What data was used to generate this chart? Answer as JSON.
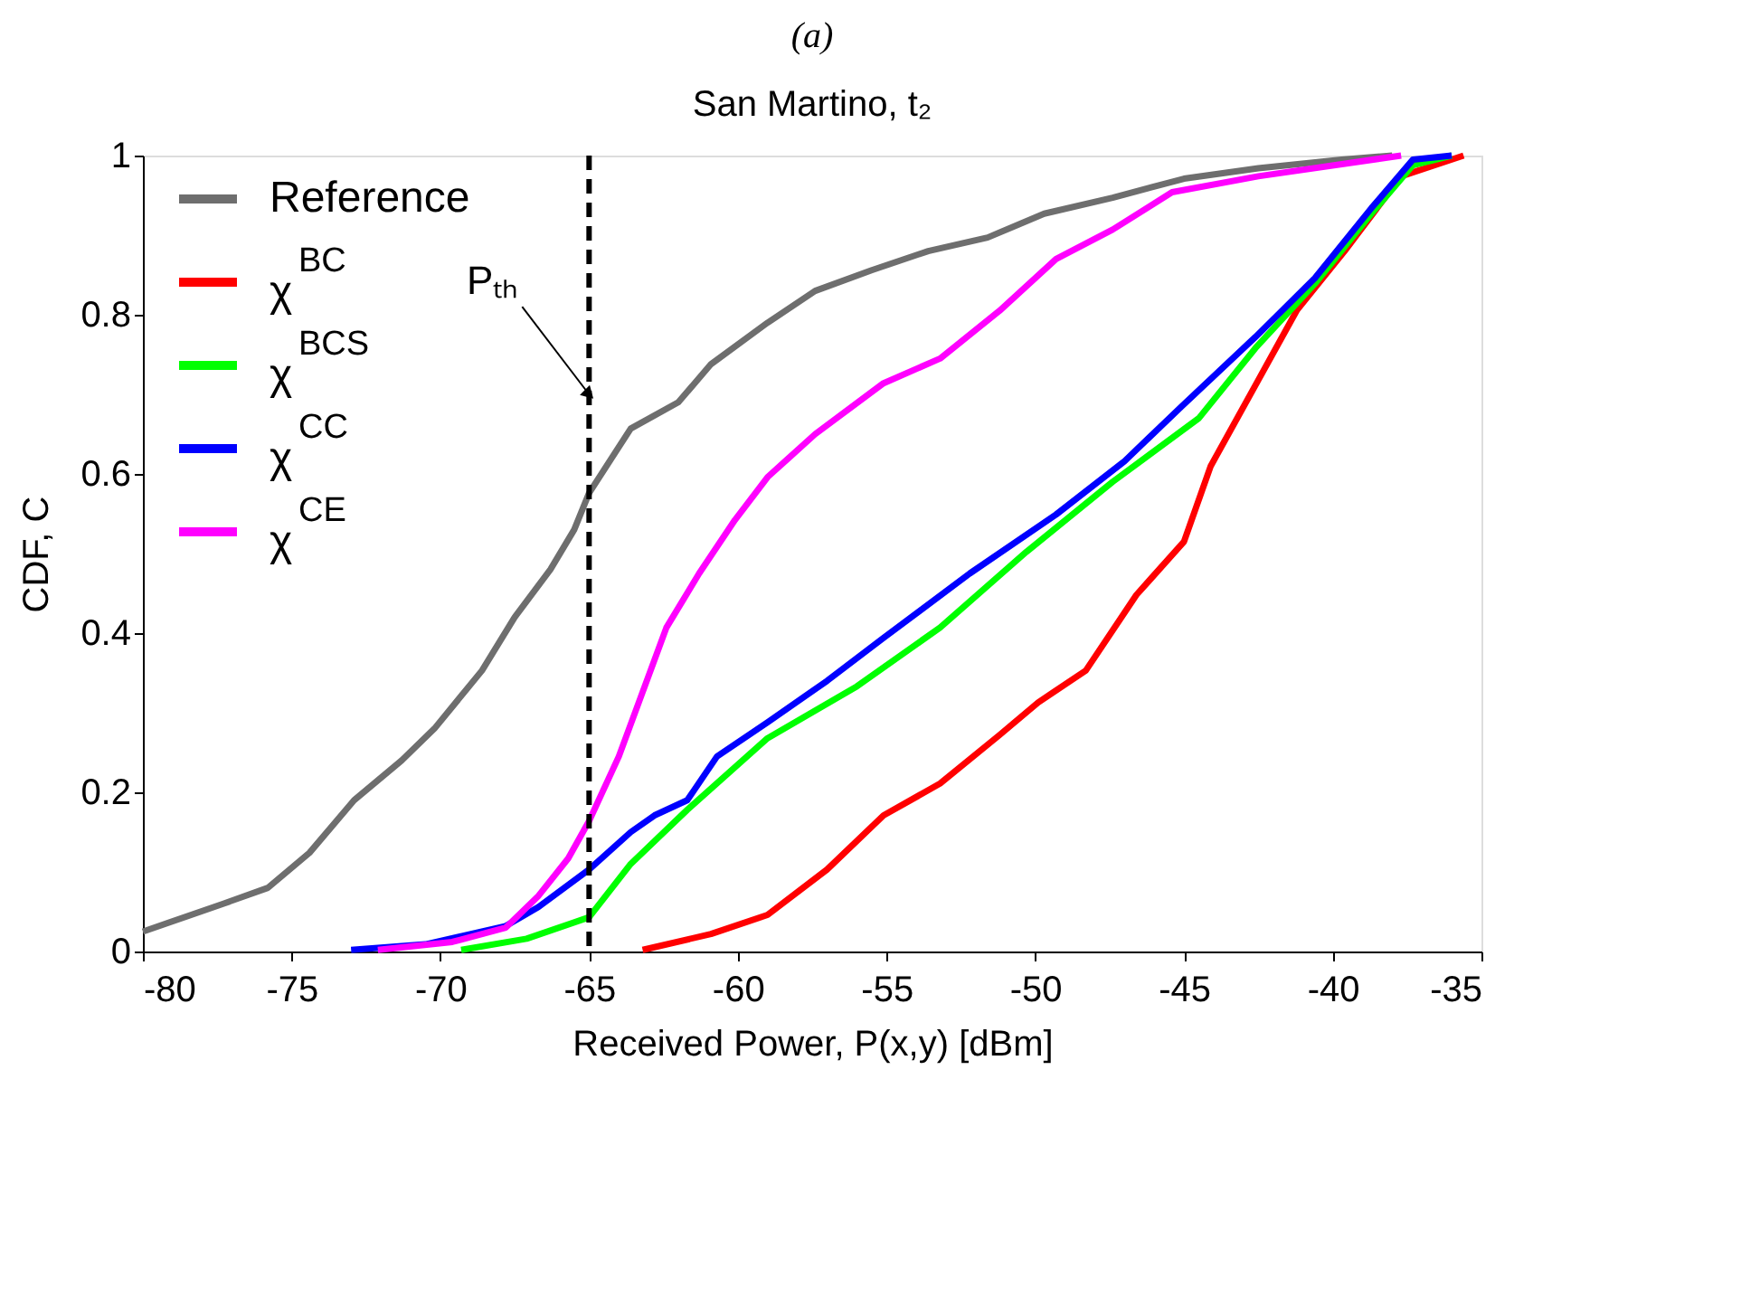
{
  "chart_data": {
    "type": "line",
    "title": "San Martino, t₂",
    "xlabel": "Received Power, P(x,y) [dBm]",
    "ylabel": "CDF, C",
    "annotations": [
      "(a)"
    ],
    "xlim": [
      -80,
      -35
    ],
    "xticks": [
      -80,
      -75,
      -70,
      -65,
      -60,
      -55,
      -50,
      -45,
      -40,
      -35
    ],
    "ylim": [
      0,
      1
    ],
    "yticks": [
      0,
      0.2,
      0.4,
      0.6,
      0.8,
      1
    ],
    "grid": false,
    "legend": "top left",
    "line_style": "solid",
    "marker": "none",
    "ref_lines": [
      {
        "axis": "x",
        "value": -65,
        "label": "Pₜₕ",
        "color": "#000000",
        "line_style": "dashed"
      }
    ],
    "series": [
      {
        "name": "Reference",
        "color": "#6e6e6e",
        "x": [
          -80,
          -77.3,
          -75.8,
          -74.4,
          -72.9,
          -71.3,
          -70.2,
          -68.6,
          -67.5,
          -66.3,
          -65.5,
          -65.0,
          -63.6,
          -62.0,
          -60.9,
          -59.0,
          -57.4,
          -55.5,
          -53.6,
          -51.6,
          -49.7,
          -47.4,
          -45.0,
          -42.5,
          -39.7,
          -38.0
        ],
        "values": [
          0.025,
          0.06,
          0.08,
          0.124,
          0.19,
          0.24,
          0.28,
          0.353,
          0.42,
          0.48,
          0.53,
          0.576,
          0.657,
          0.69,
          0.738,
          0.79,
          0.83,
          0.856,
          0.88,
          0.897,
          0.927,
          0.947,
          0.971,
          0.984,
          0.995,
          1.0
        ]
      },
      {
        "name": "χ$^{BC}$",
        "color": "#ff0000",
        "x": [
          -63.2,
          -60.9,
          -59.0,
          -57.0,
          -55.1,
          -53.2,
          -51.2,
          -49.9,
          -48.3,
          -46.6,
          -45.0,
          -44.1,
          -42.5,
          -41.2,
          -39.6,
          -37.7,
          -35.6
        ],
        "values": [
          0.002,
          0.022,
          0.046,
          0.103,
          0.171,
          0.211,
          0.272,
          0.313,
          0.353,
          0.448,
          0.515,
          0.61,
          0.718,
          0.806,
          0.88,
          0.974,
          1.0
        ]
      },
      {
        "name": "χ$^{BCS}$",
        "color": "#00ff00",
        "x": [
          -69.3,
          -67.1,
          -65.0,
          -63.6,
          -61.7,
          -59.0,
          -56.0,
          -53.2,
          -50.3,
          -47.4,
          -44.5,
          -42.6,
          -40.6,
          -38.7,
          -37.3,
          -36.0
        ],
        "values": [
          0.002,
          0.016,
          0.043,
          0.11,
          0.178,
          0.268,
          0.333,
          0.407,
          0.502,
          0.59,
          0.67,
          0.758,
          0.839,
          0.927,
          0.988,
          1.0
        ]
      },
      {
        "name": "χ$^{CC}$",
        "color": "#0000ff",
        "x": [
          -73.0,
          -70.5,
          -67.8,
          -66.7,
          -65.0,
          -63.6,
          -62.8,
          -61.7,
          -60.7,
          -59.0,
          -57.0,
          -55.1,
          -52.2,
          -49.3,
          -47.0,
          -45.1,
          -42.6,
          -40.6,
          -38.7,
          -37.3,
          -36.0
        ],
        "values": [
          0.002,
          0.009,
          0.032,
          0.056,
          0.103,
          0.15,
          0.171,
          0.19,
          0.245,
          0.288,
          0.34,
          0.394,
          0.475,
          0.549,
          0.616,
          0.684,
          0.772,
          0.846,
          0.934,
          0.995,
          1.0
        ]
      },
      {
        "name": "χ$^{CE}$",
        "color": "#ff00ff",
        "x": [
          -72.1,
          -69.6,
          -67.8,
          -66.7,
          -65.7,
          -65.0,
          -64.0,
          -63.2,
          -62.4,
          -61.3,
          -60.1,
          -59.0,
          -57.4,
          -55.1,
          -53.2,
          -51.2,
          -49.3,
          -47.4,
          -45.4,
          -42.5,
          -37.7
        ],
        "values": [
          0.002,
          0.012,
          0.03,
          0.07,
          0.117,
          0.164,
          0.245,
          0.326,
          0.407,
          0.475,
          0.542,
          0.596,
          0.65,
          0.714,
          0.745,
          0.805,
          0.87,
          0.907,
          0.954,
          0.974,
          1.0
        ]
      }
    ]
  }
}
